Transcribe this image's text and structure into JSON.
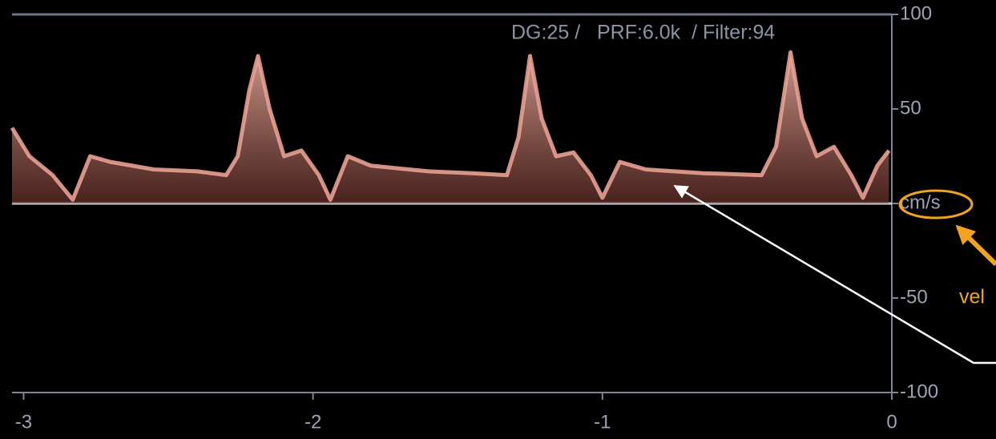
{
  "chart_data": {
    "type": "line",
    "annotation": "DG:25 /   PRF:6.0k  / Filter:94",
    "note": "vel",
    "x": [
      -3.04,
      -2.98,
      -2.9,
      -2.83,
      -2.77,
      -2.7,
      -2.55,
      -2.4,
      -2.3,
      -2.26,
      -2.22,
      -2.19,
      -2.15,
      -2.1,
      -2.04,
      -1.98,
      -1.94,
      -1.88,
      -1.8,
      -1.6,
      -1.45,
      -1.33,
      -1.29,
      -1.25,
      -1.21,
      -1.16,
      -1.1,
      -1.04,
      -1.0,
      -0.94,
      -0.85,
      -0.65,
      -0.45,
      -0.4,
      -0.35,
      -0.31,
      -0.26,
      -0.2,
      -0.14,
      -0.1,
      -0.05,
      -0.01
    ],
    "values": [
      40,
      25,
      15,
      2,
      25,
      22,
      18,
      17,
      15,
      25,
      60,
      78,
      50,
      25,
      28,
      15,
      2,
      25,
      20,
      17,
      16,
      15,
      35,
      78,
      45,
      25,
      27,
      15,
      3,
      22,
      18,
      16,
      15,
      30,
      80,
      45,
      25,
      30,
      15,
      3,
      20,
      28
    ],
    "color": "#e9a192",
    "xlim": [
      -3.04,
      0
    ],
    "ylim": [
      -100,
      100
    ],
    "xticks": [
      -3,
      -2,
      -1,
      0
    ],
    "yticks": [
      -100,
      -50,
      {
        "value": 0,
        "label": "cm/s"
      },
      50,
      100
    ]
  }
}
